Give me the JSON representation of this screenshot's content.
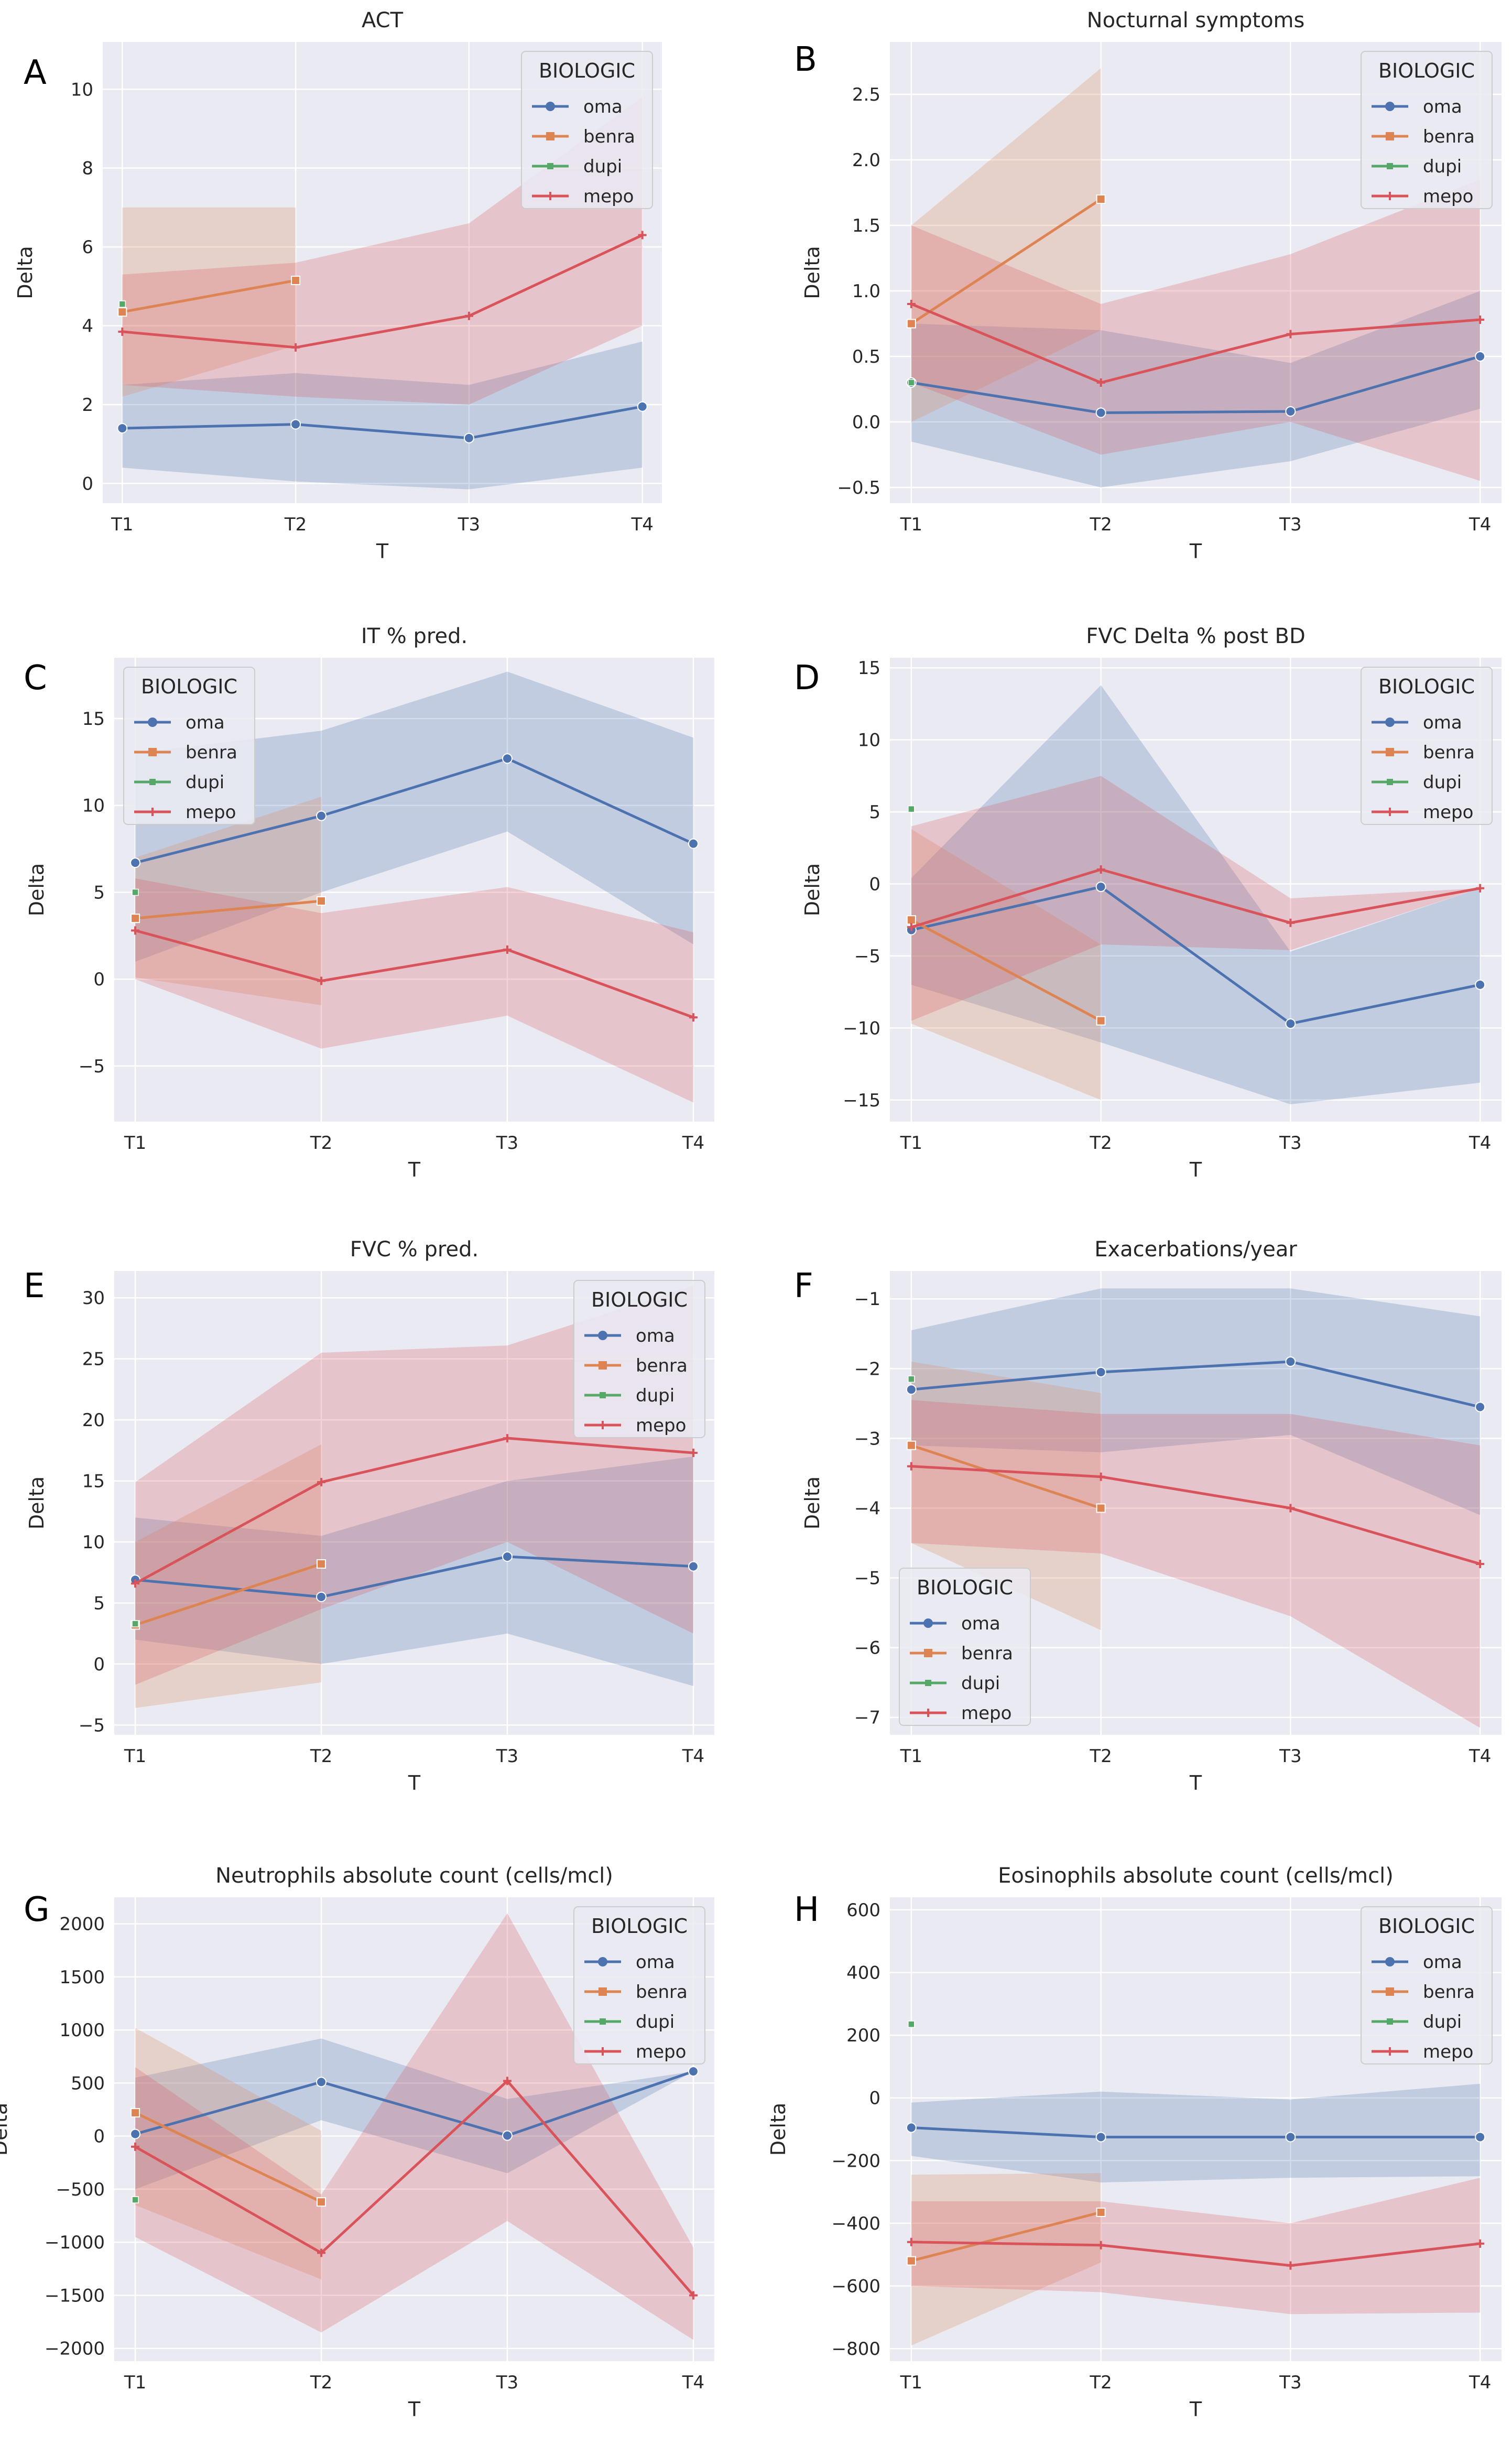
{
  "figure": {
    "panel_letters": [
      "A",
      "B",
      "C",
      "D",
      "E",
      "F",
      "G",
      "H"
    ]
  },
  "colors": {
    "background": "#eaeaf2",
    "grid": "#ffffff",
    "series": {
      "oma": "#4c72b0",
      "benra": "#dd8452",
      "dupi": "#55a868",
      "mepo": "#d9545a"
    }
  },
  "chart_data": [
    {
      "letter": "A",
      "type": "line",
      "title": "ACT",
      "xlabel": "T",
      "ylabel": "Delta",
      "categories": [
        "T1",
        "T2",
        "T3",
        "T4"
      ],
      "ylim": [
        -0.5,
        11.2
      ],
      "yticks": [
        0,
        2,
        4,
        6,
        8,
        10
      ],
      "ytick_labels": [
        "0",
        "2",
        "4",
        "6",
        "8",
        "10"
      ],
      "legend": {
        "title": "BIOLOGIC",
        "position": "top-right"
      },
      "series": [
        {
          "name": "oma",
          "values": [
            1.4,
            1.5,
            1.15,
            1.95
          ],
          "lower": [
            0.4,
            0.05,
            -0.15,
            0.4
          ],
          "upper": [
            2.5,
            2.8,
            2.5,
            3.6
          ]
        },
        {
          "name": "benra",
          "values": [
            4.35,
            5.15,
            null,
            null
          ],
          "lower": [
            2.2,
            3.5,
            null,
            null
          ],
          "upper": [
            7.0,
            7.0,
            null,
            null
          ]
        },
        {
          "name": "dupi",
          "values": [
            4.55,
            null,
            null,
            null
          ],
          "lower": [
            4.55,
            null,
            null,
            null
          ],
          "upper": [
            4.55,
            null,
            null,
            null
          ]
        },
        {
          "name": "mepo",
          "values": [
            3.85,
            3.45,
            4.25,
            6.3
          ],
          "lower": [
            2.5,
            2.2,
            2.0,
            4.0
          ],
          "upper": [
            5.3,
            5.6,
            6.6,
            9.8
          ]
        }
      ]
    },
    {
      "letter": "B",
      "type": "line",
      "title": "Nocturnal symptoms",
      "xlabel": "T",
      "ylabel": "Delta",
      "categories": [
        "T1",
        "T2",
        "T3",
        "T4"
      ],
      "ylim": [
        -0.62,
        2.9
      ],
      "yticks": [
        -0.5,
        0,
        0.5,
        1,
        1.5,
        2,
        2.5
      ],
      "ytick_labels": [
        "−0.5",
        "0.0",
        "0.5",
        "1.0",
        "1.5",
        "2.0",
        "2.5"
      ],
      "legend": {
        "title": "BIOLOGIC",
        "position": "top-right"
      },
      "series": [
        {
          "name": "oma",
          "values": [
            0.3,
            0.07,
            0.08,
            0.5
          ],
          "lower": [
            -0.15,
            -0.5,
            -0.3,
            0.1
          ],
          "upper": [
            0.75,
            0.7,
            0.45,
            1.0
          ]
        },
        {
          "name": "benra",
          "values": [
            0.75,
            1.7,
            null,
            null
          ],
          "lower": [
            0.0,
            0.7,
            null,
            null
          ],
          "upper": [
            1.5,
            2.7,
            null,
            null
          ]
        },
        {
          "name": "dupi",
          "values": [
            0.3,
            null,
            null,
            null
          ],
          "lower": [
            0.3,
            null,
            null,
            null
          ],
          "upper": [
            0.3,
            null,
            null,
            null
          ]
        },
        {
          "name": "mepo",
          "values": [
            0.9,
            0.3,
            0.67,
            0.78
          ],
          "lower": [
            0.3,
            -0.25,
            0.0,
            -0.45
          ],
          "upper": [
            1.5,
            0.9,
            1.28,
            1.85
          ]
        }
      ]
    },
    {
      "letter": "C",
      "type": "line",
      "title": "IT % pred.",
      "xlabel": "T",
      "ylabel": "Delta",
      "categories": [
        "T1",
        "T2",
        "T3",
        "T4"
      ],
      "ylim": [
        -8.2,
        18.5
      ],
      "yticks": [
        -5,
        0,
        5,
        10,
        15
      ],
      "ytick_labels": [
        "−5",
        "0",
        "5",
        "10",
        "15"
      ],
      "legend": {
        "title": "BIOLOGIC",
        "position": "top-left"
      },
      "series": [
        {
          "name": "oma",
          "values": [
            6.7,
            9.4,
            12.7,
            7.8
          ],
          "lower": [
            1.0,
            5.0,
            8.5,
            2.0
          ],
          "upper": [
            13.0,
            14.3,
            17.7,
            13.9
          ]
        },
        {
          "name": "benra",
          "values": [
            3.5,
            4.5,
            null,
            null
          ],
          "lower": [
            0.1,
            -1.5,
            null,
            null
          ],
          "upper": [
            7.0,
            10.5,
            null,
            null
          ]
        },
        {
          "name": "dupi",
          "values": [
            5.0,
            null,
            null,
            null
          ],
          "lower": [
            5.0,
            null,
            null,
            null
          ],
          "upper": [
            5.0,
            null,
            null,
            null
          ]
        },
        {
          "name": "mepo",
          "values": [
            2.8,
            -0.1,
            1.7,
            -2.2
          ],
          "lower": [
            0.0,
            -4.0,
            -2.1,
            -7.1
          ],
          "upper": [
            5.8,
            3.8,
            5.3,
            2.7
          ]
        }
      ]
    },
    {
      "letter": "D",
      "type": "line",
      "title": "FVC Delta % post BD",
      "xlabel": "T",
      "ylabel": "Delta",
      "categories": [
        "T1",
        "T2",
        "T3",
        "T4"
      ],
      "ylim": [
        -16.5,
        15.7
      ],
      "yticks": [
        -15,
        -10,
        -5,
        0,
        5,
        10,
        15
      ],
      "ytick_labels": [
        "−15",
        "−10",
        "−5",
        "0",
        "5",
        "10",
        "15"
      ],
      "legend": {
        "title": "BIOLOGIC",
        "position": "top-right"
      },
      "series": [
        {
          "name": "oma",
          "values": [
            -3.2,
            -0.2,
            -9.7,
            -7.0
          ],
          "lower": [
            -7.0,
            -11.0,
            -15.3,
            -13.8
          ],
          "upper": [
            0.4,
            13.8,
            -4.7,
            -0.3
          ]
        },
        {
          "name": "benra",
          "values": [
            -2.5,
            -9.5,
            null,
            null
          ],
          "lower": [
            -9.7,
            -15.0,
            null,
            null
          ],
          "upper": [
            3.8,
            -4.2,
            null,
            null
          ]
        },
        {
          "name": "dupi",
          "values": [
            5.2,
            null,
            null,
            null
          ],
          "lower": [
            5.2,
            null,
            null,
            null
          ],
          "upper": [
            5.2,
            null,
            null,
            null
          ]
        },
        {
          "name": "mepo",
          "values": [
            -3.0,
            1.0,
            -2.7,
            -0.3
          ],
          "lower": [
            -9.5,
            -4.2,
            -4.6,
            -0.3
          ],
          "upper": [
            4.0,
            7.5,
            -1.0,
            -0.3
          ]
        }
      ]
    },
    {
      "letter": "E",
      "type": "line",
      "title": "FVC % pred.",
      "xlabel": "T",
      "ylabel": "Delta",
      "categories": [
        "T1",
        "T2",
        "T3",
        "T4"
      ],
      "ylim": [
        -5.8,
        32.2
      ],
      "yticks": [
        -5,
        0,
        5,
        10,
        15,
        20,
        25,
        30
      ],
      "ytick_labels": [
        "−5",
        "0",
        "5",
        "10",
        "15",
        "20",
        "25",
        "30"
      ],
      "legend": {
        "title": "BIOLOGIC",
        "position": "top-right"
      },
      "series": [
        {
          "name": "oma",
          "values": [
            6.9,
            5.5,
            8.8,
            8.0
          ],
          "lower": [
            2.0,
            0.0,
            2.5,
            -1.8
          ],
          "upper": [
            12.0,
            10.5,
            15.0,
            17.0
          ]
        },
        {
          "name": "benra",
          "values": [
            3.2,
            8.2,
            null,
            null
          ],
          "lower": [
            -3.6,
            -1.5,
            null,
            null
          ],
          "upper": [
            10.0,
            18.0,
            null,
            null
          ]
        },
        {
          "name": "dupi",
          "values": [
            3.3,
            null,
            null,
            null
          ],
          "lower": [
            3.3,
            null,
            null,
            null
          ],
          "upper": [
            3.3,
            null,
            null,
            null
          ]
        },
        {
          "name": "mepo",
          "values": [
            6.6,
            14.9,
            18.5,
            17.3
          ],
          "lower": [
            -1.7,
            4.5,
            10.0,
            2.5
          ],
          "upper": [
            14.9,
            25.5,
            26.1,
            31.0
          ]
        }
      ]
    },
    {
      "letter": "F",
      "type": "line",
      "title": "Exacerbations/year",
      "xlabel": "T",
      "ylabel": "Delta",
      "categories": [
        "T1",
        "T2",
        "T3",
        "T4"
      ],
      "ylim": [
        -7.25,
        -0.6
      ],
      "yticks": [
        -7,
        -6,
        -5,
        -4,
        -3,
        -2,
        -1
      ],
      "ytick_labels": [
        "−7",
        "−6",
        "−5",
        "−4",
        "−3",
        "−2",
        "−1"
      ],
      "legend": {
        "title": "BIOLOGIC",
        "position": "bottom-left"
      },
      "series": [
        {
          "name": "oma",
          "values": [
            -2.3,
            -2.05,
            -1.9,
            -2.55
          ],
          "lower": [
            -3.1,
            -3.2,
            -2.95,
            -4.1
          ],
          "upper": [
            -1.45,
            -0.85,
            -0.85,
            -1.25
          ]
        },
        {
          "name": "benra",
          "values": [
            -3.1,
            -4.0,
            null,
            null
          ],
          "lower": [
            -4.5,
            -5.75,
            null,
            null
          ],
          "upper": [
            -1.9,
            -2.35,
            null,
            null
          ]
        },
        {
          "name": "dupi",
          "values": [
            -2.15,
            null,
            null,
            null
          ],
          "lower": [
            -2.15,
            null,
            null,
            null
          ],
          "upper": [
            -2.15,
            null,
            null,
            null
          ]
        },
        {
          "name": "mepo",
          "values": [
            -3.4,
            -3.55,
            -4.0,
            -4.8
          ],
          "lower": [
            -4.5,
            -4.65,
            -5.55,
            -7.15
          ],
          "upper": [
            -2.45,
            -2.65,
            -2.65,
            -3.1
          ]
        }
      ]
    },
    {
      "letter": "G",
      "type": "line",
      "title": "Neutrophils absolute count (cells/mcl)",
      "xlabel": "T",
      "ylabel": "Delta",
      "categories": [
        "T1",
        "T2",
        "T3",
        "T4"
      ],
      "ylim": [
        -2120,
        2250
      ],
      "yticks": [
        -2000,
        -1500,
        -1000,
        -500,
        0,
        500,
        1000,
        1500,
        2000
      ],
      "ytick_labels": [
        "−2000",
        "−1500",
        "−1000",
        "−500",
        "0",
        "500",
        "1000",
        "1500",
        "2000"
      ],
      "legend": {
        "title": "BIOLOGIC",
        "position": "top-right"
      },
      "series": [
        {
          "name": "oma",
          "values": [
            20,
            510,
            5,
            610
          ],
          "lower": [
            -500,
            150,
            -350,
            610
          ],
          "upper": [
            550,
            920,
            350,
            610
          ]
        },
        {
          "name": "benra",
          "values": [
            220,
            -620,
            null,
            null
          ],
          "lower": [
            -650,
            -1350,
            null,
            null
          ],
          "upper": [
            1020,
            50,
            null,
            null
          ]
        },
        {
          "name": "dupi",
          "values": [
            -600,
            null,
            null,
            null
          ],
          "lower": [
            -600,
            null,
            null,
            null
          ],
          "upper": [
            -600,
            null,
            null,
            null
          ]
        },
        {
          "name": "mepo",
          "values": [
            -100,
            -1100,
            520,
            -1500
          ],
          "lower": [
            -950,
            -1850,
            -800,
            -1920
          ],
          "upper": [
            650,
            -550,
            2100,
            -1050
          ]
        }
      ]
    },
    {
      "letter": "H",
      "type": "line",
      "title": "Eosinophils absolute count (cells/mcl)",
      "xlabel": "T",
      "ylabel": "Delta",
      "categories": [
        "T1",
        "T2",
        "T3",
        "T4"
      ],
      "ylim": [
        -840,
        640
      ],
      "yticks": [
        -800,
        -600,
        -400,
        -200,
        0,
        200,
        400,
        600
      ],
      "ytick_labels": [
        "−800",
        "−600",
        "−400",
        "−200",
        "0",
        "200",
        "400",
        "600"
      ],
      "legend": {
        "title": "BIOLOGIC",
        "position": "top-right"
      },
      "series": [
        {
          "name": "oma",
          "values": [
            -95,
            -125,
            -125,
            -125
          ],
          "lower": [
            -185,
            -270,
            -255,
            -250
          ],
          "upper": [
            -15,
            20,
            -5,
            45
          ]
        },
        {
          "name": "benra",
          "values": [
            -520,
            -365,
            null,
            null
          ],
          "lower": [
            -790,
            -525,
            null,
            null
          ],
          "upper": [
            -245,
            -240,
            null,
            null
          ]
        },
        {
          "name": "dupi",
          "values": [
            235,
            null,
            null,
            null
          ],
          "lower": [
            235,
            null,
            null,
            null
          ],
          "upper": [
            235,
            null,
            null,
            null
          ]
        },
        {
          "name": "mepo",
          "values": [
            -460,
            -470,
            -535,
            -465
          ],
          "lower": [
            -600,
            -620,
            -690,
            -685
          ],
          "upper": [
            -330,
            -330,
            -400,
            -255
          ]
        }
      ]
    }
  ]
}
